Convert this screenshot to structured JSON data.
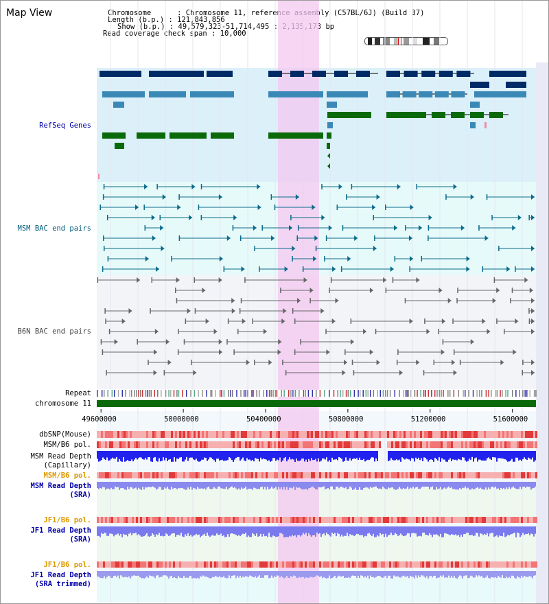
{
  "view": {
    "title": "Map View",
    "chromosome_key": "Chromosome",
    "chromosome_value": "Chromosome 11, reference assembly (C57BL/6J) (Build 37)",
    "length_key": "Length (b.p.)",
    "length_value": "121,843,856",
    "show_key": "Show (b.p.)",
    "show_value": "49,579,323-51,714,495 : 2,135,173 bp",
    "coverage_key": "Read coverage check span",
    "coverage_value": "10,000"
  },
  "region": {
    "start": 49579323,
    "end": 51714495,
    "highlight_start": 50460000,
    "highlight_end": 50660000
  },
  "axis": {
    "ticks": [
      "49600000",
      "50000000",
      "50400000",
      "50800000",
      "51200000",
      "51600000"
    ],
    "tick_values": [
      49600000,
      50000000,
      50400000,
      50800000,
      51200000,
      51600000
    ]
  },
  "tracks": {
    "refseq": "RefSeq Genes",
    "msm_bac": "MSM BAC end pairs",
    "b6n_bac": "B6N BAC end pairs",
    "repeat": "Repeat",
    "chromosome": "chromosome 11",
    "dbsnp": "dbSNP(Mouse)",
    "msm_b6_pol": "MSM/B6 pol.",
    "msm_read_depth_cap": "MSM Read Depth\n(Capillary)",
    "msm_b6_pol_sra": "MSM/B6 pol.",
    "msm_read_depth_sra": "MSM Read Depth\n(SRA)",
    "jf1_b6_pol": "JF1/B6 pol.",
    "jf1_read_depth_sra": "JF1 Read Depth\n(SRA)",
    "jf1_b6_pol_trim": "JF1/B6 pol.",
    "jf1_read_depth_trim": "JF1 Read Depth\n(SRA trimmed)"
  },
  "colors": {
    "refseq_bg": "#dcf0fa",
    "msm_bg": "#e6fafa",
    "b6n_bg": "#f2f4f8",
    "highlight": "#f4c8f0",
    "gene_dark": "#002a66",
    "gene_mid": "#3a88b6",
    "gene_green": "#0a6a0a",
    "bac_teal": "#0b6a8a",
    "bac_gray": "#666666",
    "chrom_green": "#0a6a0a"
  }
}
